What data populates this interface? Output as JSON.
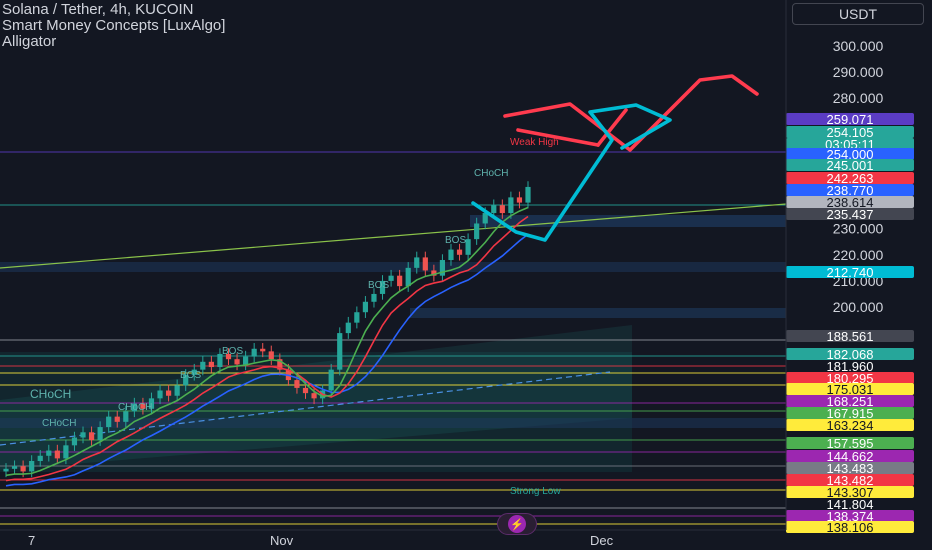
{
  "legend": {
    "line1": "Solana / Tether, 4h, KUCOIN",
    "line2": "Smart Money Concepts [LuxAlgo]",
    "line3": "Alligator"
  },
  "currency": "USDT",
  "bolt_icon": "lightning-icon",
  "colors": {
    "background": "#131722",
    "up": "#26a69a",
    "down": "#ef5350",
    "projection_red": "#ff3b4e",
    "projection_cyan": "#00bcd4"
  },
  "annotations": {
    "week_high": "Weak High",
    "strong_low": "Strong Low",
    "choch_left": "CHoCH",
    "choch_mid": "CHoCH",
    "choch_small": "CHoCH",
    "choch_top": "CHoCH",
    "bos_1": "BOS",
    "bos_2": "BOS",
    "bos_3": "BOS",
    "bos_4": "BOS"
  },
  "chart_data": {
    "type": "candlestick",
    "symbol": "Solana / Tether",
    "interval": "4h",
    "exchange": "KUCOIN",
    "x_tick_labels": [
      "7",
      "Nov",
      "Dec"
    ],
    "y_axis": {
      "ticks": [
        300,
        290,
        280,
        230,
        220,
        210,
        200
      ],
      "tick_labels": [
        "300.000",
        "290.000",
        "280.000",
        "230.000",
        "220.000",
        "210.000",
        "200.000"
      ]
    },
    "series_close": [
      138,
      139,
      137,
      141,
      143,
      145,
      142,
      147,
      150,
      152,
      149,
      154,
      158,
      156,
      160,
      163,
      161,
      165,
      168,
      166,
      170,
      174,
      176,
      179,
      177,
      182,
      180,
      178,
      181,
      184,
      183,
      180,
      176,
      172,
      169,
      167,
      165,
      168,
      176,
      190,
      194,
      198,
      202,
      205,
      210,
      212,
      208,
      215,
      219,
      214,
      212,
      218,
      222,
      220,
      226,
      232,
      236,
      239,
      236,
      242,
      240,
      246
    ],
    "price_labels": [
      {
        "text": "259.071",
        "bg": "#5b3cc4"
      },
      {
        "text": "254.105",
        "bg": "#26a69a"
      },
      {
        "text": "03:05:11",
        "bg": "#26a69a"
      },
      {
        "text": "254.000",
        "bg": "#2962ff"
      },
      {
        "text": "245.001",
        "bg": "#26a69a"
      },
      {
        "text": "242.263",
        "bg": "#f23645"
      },
      {
        "text": "238.770",
        "bg": "#2962ff"
      },
      {
        "text": "238.614",
        "bg": "#b2b5be"
      },
      {
        "text": "235.437",
        "bg": "#434651"
      },
      {
        "text": "212.740",
        "bg": "#00bcd4"
      },
      {
        "text": "188.561",
        "bg": "#434651"
      },
      {
        "text": "182.068",
        "bg": "#26a69a"
      },
      {
        "text": "181.960",
        "bg": "#131722"
      },
      {
        "text": "180.295",
        "bg": "#f23645"
      },
      {
        "text": "175.031",
        "bg": "#ffeb3b"
      },
      {
        "text": "168.251",
        "bg": "#9c27b0"
      },
      {
        "text": "167.915",
        "bg": "#4caf50"
      },
      {
        "text": "163.234",
        "bg": "#ffeb3b"
      },
      {
        "text": "157.595",
        "bg": "#4caf50"
      },
      {
        "text": "144.662",
        "bg": "#9c27b0"
      },
      {
        "text": "143.483",
        "bg": "#787b86"
      },
      {
        "text": "143.482",
        "bg": "#f23645"
      },
      {
        "text": "143.307",
        "bg": "#ffeb3b"
      },
      {
        "text": "141.804",
        "bg": "#131722"
      },
      {
        "text": "138.374",
        "bg": "#9c27b0"
      },
      {
        "text": "138.106",
        "bg": "#ffeb3b"
      }
    ]
  }
}
